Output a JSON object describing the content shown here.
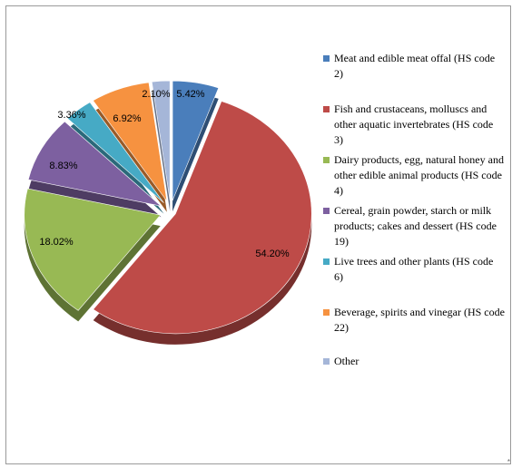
{
  "chart_data": {
    "type": "pie",
    "title": "",
    "legend_position": "right",
    "slices": [
      {
        "label": "Meat and edible meat offal (HS code 2)",
        "value": 5.42,
        "display": "5.42%",
        "color": "#4a7ebb"
      },
      {
        "label": "Fish and crustaceans, molluscs and other aquatic invertebrates (HS code 3)",
        "value": 54.2,
        "display": "54.20%",
        "color": "#be4b48"
      },
      {
        "label": "Dairy products, egg, natural honey and other edible animal products (HS code 4)",
        "value": 18.02,
        "display": "18.02%",
        "color": "#98b954"
      },
      {
        "label": "Cereal, grain powder, starch or milk products; cakes and dessert (HS code 19)",
        "value": 8.83,
        "display": "8.83%",
        "color": "#7d60a0"
      },
      {
        "label": "Live trees and other plants (HS code 6)",
        "value": 3.36,
        "display": "3.36%",
        "color": "#46aac5"
      },
      {
        "label": "Beverage, spirits and vinegar (HS code 22)",
        "value": 6.92,
        "display": "6.92%",
        "color": "#f69240"
      },
      {
        "label": "Other",
        "value": 2.1,
        "display": "2.10%",
        "color": "#a5b6d8"
      }
    ]
  },
  "corner_mark": "*"
}
